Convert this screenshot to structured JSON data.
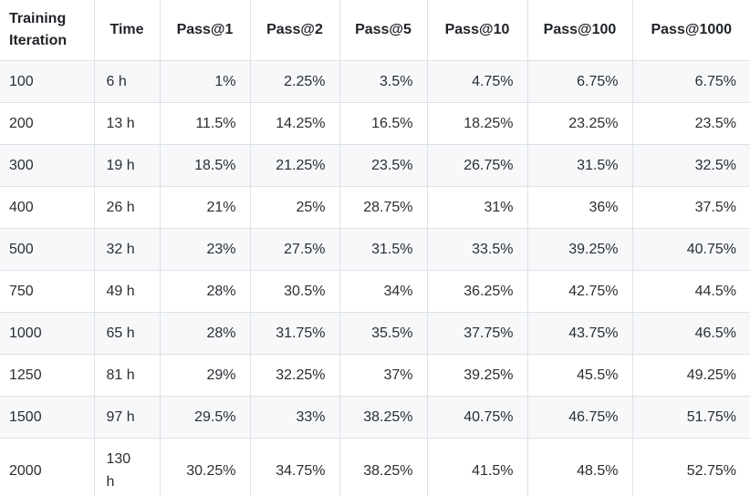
{
  "table": {
    "headers": [
      "Training Iteration",
      "Time",
      "Pass@1",
      "Pass@2",
      "Pass@5",
      "Pass@10",
      "Pass@100",
      "Pass@1000"
    ],
    "rows": [
      [
        "100",
        "6 h",
        "1%",
        "2.25%",
        "3.5%",
        "4.75%",
        "6.75%",
        "6.75%"
      ],
      [
        "200",
        "13 h",
        "11.5%",
        "14.25%",
        "16.5%",
        "18.25%",
        "23.25%",
        "23.5%"
      ],
      [
        "300",
        "19 h",
        "18.5%",
        "21.25%",
        "23.5%",
        "26.75%",
        "31.5%",
        "32.5%"
      ],
      [
        "400",
        "26 h",
        "21%",
        "25%",
        "28.75%",
        "31%",
        "36%",
        "37.5%"
      ],
      [
        "500",
        "32 h",
        "23%",
        "27.5%",
        "31.5%",
        "33.5%",
        "39.25%",
        "40.75%"
      ],
      [
        "750",
        "49 h",
        "28%",
        "30.5%",
        "34%",
        "36.25%",
        "42.75%",
        "44.5%"
      ],
      [
        "1000",
        "65 h",
        "28%",
        "31.75%",
        "35.5%",
        "37.75%",
        "43.75%",
        "46.5%"
      ],
      [
        "1250",
        "81 h",
        "29%",
        "32.25%",
        "37%",
        "39.25%",
        "45.5%",
        "49.25%"
      ],
      [
        "1500",
        "97 h",
        "29.5%",
        "33%",
        "38.25%",
        "40.75%",
        "46.75%",
        "51.75%"
      ],
      [
        "2000",
        "130 h",
        "30.25%",
        "34.75%",
        "38.25%",
        "41.5%",
        "48.5%",
        "52.75%"
      ]
    ]
  },
  "chart_data": {
    "type": "table",
    "columns": [
      "Training Iteration",
      "Time",
      "Pass@1",
      "Pass@2",
      "Pass@5",
      "Pass@10",
      "Pass@100",
      "Pass@1000"
    ],
    "categories": [
      100,
      200,
      300,
      400,
      500,
      750,
      1000,
      1250,
      1500,
      2000
    ],
    "time_hours": [
      6,
      13,
      19,
      26,
      32,
      49,
      65,
      81,
      97,
      130
    ],
    "series": [
      {
        "name": "Pass@1",
        "values": [
          1,
          11.5,
          18.5,
          21,
          23,
          28,
          28,
          29,
          29.5,
          30.25
        ]
      },
      {
        "name": "Pass@2",
        "values": [
          2.25,
          14.25,
          21.25,
          25,
          27.5,
          30.5,
          31.75,
          32.25,
          33,
          34.75
        ]
      },
      {
        "name": "Pass@5",
        "values": [
          3.5,
          16.5,
          23.5,
          28.75,
          31.5,
          34,
          35.5,
          37,
          38.25,
          38.25
        ]
      },
      {
        "name": "Pass@10",
        "values": [
          4.75,
          18.25,
          26.75,
          31,
          33.5,
          36.25,
          37.75,
          39.25,
          40.75,
          41.5
        ]
      },
      {
        "name": "Pass@100",
        "values": [
          6.75,
          23.25,
          31.5,
          36,
          39.25,
          42.75,
          43.75,
          45.5,
          46.75,
          48.5
        ]
      },
      {
        "name": "Pass@1000",
        "values": [
          6.75,
          23.5,
          32.5,
          37.5,
          40.75,
          44.5,
          46.5,
          49.25,
          51.75,
          52.75
        ]
      }
    ],
    "value_unit": "%",
    "xlabel": "Training Iteration",
    "grid": true,
    "legend_position": "none"
  },
  "colors": {
    "background": "#ffffff",
    "stripe": "#f6f8fa",
    "border": "#dee2e6",
    "header_text": "#1f2328",
    "cell_text": "#2a2e33"
  }
}
